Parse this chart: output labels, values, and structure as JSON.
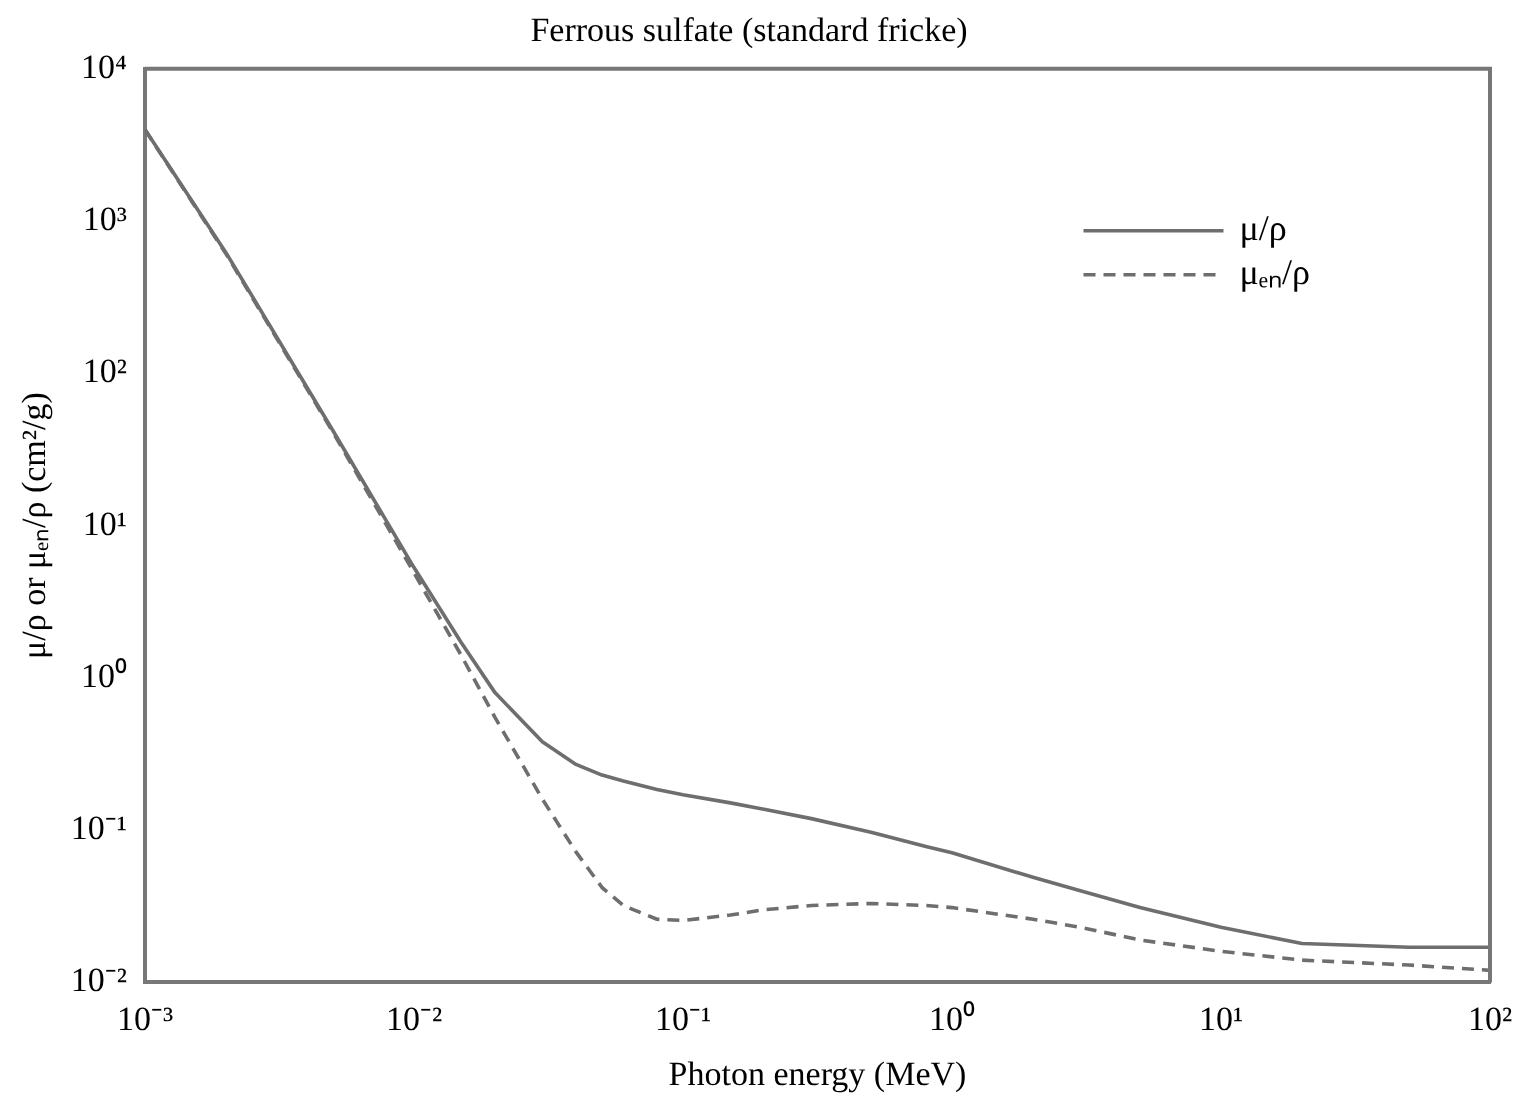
{
  "chart_data": {
    "type": "line",
    "title": "Ferrous sulfate (standard fricke)",
    "xlabel": "Photon energy (MeV)",
    "ylabel": "μ/ρ or μₑₙ/ρ (cm²/g)",
    "x": [
      0.001,
      0.002,
      0.005,
      0.01,
      0.015,
      0.02,
      0.03,
      0.04,
      0.05,
      0.06,
      0.08,
      0.1,
      0.15,
      0.2,
      0.3,
      0.5,
      0.8,
      1,
      2,
      3,
      5,
      10,
      20,
      50,
      100
    ],
    "series": [
      {
        "name": "μ/ρ",
        "color": "#6e6e6e",
        "line_style": "solid",
        "values": [
          4000,
          620,
          42,
          5.3,
          1.7,
          0.8,
          0.38,
          0.27,
          0.23,
          0.21,
          0.185,
          0.171,
          0.151,
          0.137,
          0.119,
          0.097,
          0.078,
          0.071,
          0.049,
          0.04,
          0.031,
          0.023,
          0.018,
          0.017,
          0.017
        ]
      },
      {
        "name": "μₑₙ/ρ",
        "color": "#6e6e6e",
        "line_style": "dashed",
        "values": [
          3980,
          610,
          41,
          4.9,
          1.4,
          0.55,
          0.16,
          0.072,
          0.042,
          0.032,
          0.026,
          0.0255,
          0.0277,
          0.03,
          0.032,
          0.033,
          0.032,
          0.031,
          0.026,
          0.023,
          0.019,
          0.016,
          0.014,
          0.013,
          0.012
        ]
      }
    ],
    "log": "xy",
    "xlim": [
      0.001,
      100
    ],
    "ylim": [
      0.01,
      10000
    ],
    "xticks": [
      {
        "value": 0.001,
        "label": "10⁻³"
      },
      {
        "value": 0.01,
        "label": "10⁻²"
      },
      {
        "value": 0.1,
        "label": "10⁻¹"
      },
      {
        "value": 1,
        "label": "10⁰"
      },
      {
        "value": 10,
        "label": "10¹"
      },
      {
        "value": 100,
        "label": "10²"
      }
    ],
    "yticks": [
      {
        "value": 0.01,
        "label": "10⁻²"
      },
      {
        "value": 0.1,
        "label": "10⁻¹"
      },
      {
        "value": 1,
        "label": "10⁰"
      },
      {
        "value": 10,
        "label": "10¹"
      },
      {
        "value": 100,
        "label": "10²"
      },
      {
        "value": 1000,
        "label": "10³"
      },
      {
        "value": 10000,
        "label": "10⁴"
      }
    ],
    "grid": false,
    "legend": "top right",
    "marker": "none"
  }
}
